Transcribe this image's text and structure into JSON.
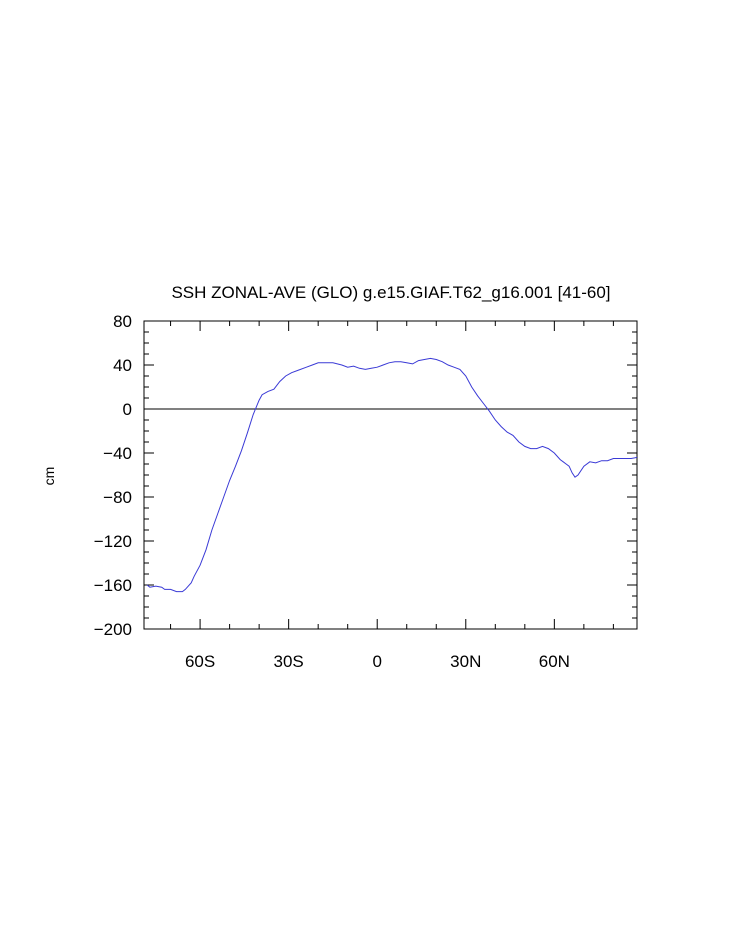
{
  "chart_data": {
    "type": "line",
    "title": "SSH ZONAL-AVE (GLO) g.e15.GIAF.T62_g16.001 [41-60]",
    "xlabel": "",
    "ylabel": "cm",
    "xlim": [
      -79,
      88
    ],
    "ylim": [
      -200,
      80
    ],
    "x_ticks": [
      {
        "value": -60,
        "label": "60S"
      },
      {
        "value": -30,
        "label": "30S"
      },
      {
        "value": 0,
        "label": "0"
      },
      {
        "value": 30,
        "label": "30N"
      },
      {
        "value": 60,
        "label": "60N"
      }
    ],
    "y_ticks": [
      {
        "value": 80,
        "label": "80"
      },
      {
        "value": 40,
        "label": "40"
      },
      {
        "value": 0,
        "label": "0"
      },
      {
        "value": -40,
        "label": "−40"
      },
      {
        "value": -80,
        "label": "−80"
      },
      {
        "value": -120,
        "label": "−120"
      },
      {
        "value": -160,
        "label": "−160"
      },
      {
        "value": -200,
        "label": "−200"
      }
    ],
    "reference_line_y": 0,
    "line_color": "#3a3ad6",
    "series": [
      {
        "x": [
          -78,
          -77,
          -75,
          -73,
          -72,
          -70,
          -68,
          -66,
          -65,
          -63,
          -62,
          -60,
          -58,
          -56,
          -54,
          -52,
          -50,
          -48,
          -46,
          -44,
          -42,
          -40,
          -39,
          -37,
          -35,
          -33,
          -31,
          -29,
          -27,
          -24,
          -22,
          -20,
          -18,
          -15,
          -12,
          -10,
          -8,
          -6,
          -4,
          -2,
          0,
          2,
          4,
          6,
          8,
          10,
          12,
          14,
          16,
          18,
          20,
          22,
          24,
          26,
          28,
          30,
          32,
          34,
          36,
          38,
          40,
          42,
          44,
          46,
          48,
          50,
          52,
          54,
          56,
          58,
          60,
          62,
          63,
          64,
          65,
          66,
          67,
          68,
          70,
          72,
          74,
          76,
          78,
          80,
          82,
          84,
          86,
          88
        ],
        "y": [
          -160,
          -162,
          -161,
          -162,
          -164,
          -164,
          -166,
          -166,
          -164,
          -158,
          -152,
          -142,
          -128,
          -110,
          -95,
          -80,
          -65,
          -52,
          -38,
          -22,
          -5,
          8,
          13,
          16,
          18,
          25,
          30,
          33,
          35,
          38,
          40,
          42,
          42,
          42,
          40,
          38,
          39,
          37,
          36,
          37,
          38,
          40,
          42,
          43,
          43,
          42,
          41,
          44,
          45,
          46,
          45,
          43,
          40,
          38,
          36,
          30,
          20,
          12,
          5,
          -2,
          -10,
          -16,
          -21,
          -24,
          -30,
          -34,
          -36,
          -36,
          -34,
          -36,
          -40,
          -46,
          -48,
          -50,
          -52,
          -58,
          -62,
          -60,
          -52,
          -48,
          -49,
          -47,
          -47,
          -45,
          -45,
          -45,
          -45,
          -44
        ]
      }
    ]
  }
}
